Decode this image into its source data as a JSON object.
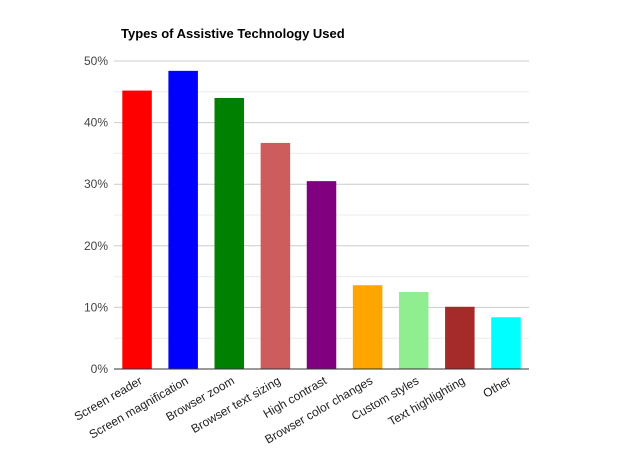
{
  "chart_data": {
    "type": "bar",
    "title": "Types of Assistive Technology Used",
    "xlabel": "",
    "ylabel": "",
    "ylim": [
      0,
      50
    ],
    "y_ticks": [
      {
        "value": 0,
        "label": "0%"
      },
      {
        "value": 10,
        "label": "10%"
      },
      {
        "value": 20,
        "label": "20%"
      },
      {
        "value": 30,
        "label": "30%"
      },
      {
        "value": 40,
        "label": "40%"
      },
      {
        "value": 50,
        "label": "50%"
      }
    ],
    "minor_gridlines": [
      5,
      15,
      25,
      35,
      45
    ],
    "grid": true,
    "legend": "none",
    "categories": [
      "Screen reader",
      "Screen magnification",
      "Browser zoom",
      "Browser text sizing",
      "High contrast",
      "Browser color changes",
      "Custom styles",
      "Text highlighting",
      "Other"
    ],
    "values": [
      45.2,
      48.4,
      44.0,
      36.7,
      30.5,
      13.6,
      12.5,
      10.1,
      8.4
    ],
    "colors": [
      "#ff0000",
      "#0000ff",
      "#008000",
      "#cd5c5c",
      "#800080",
      "#ffa500",
      "#90ee90",
      "#a52a2a",
      "#00ffff"
    ]
  }
}
